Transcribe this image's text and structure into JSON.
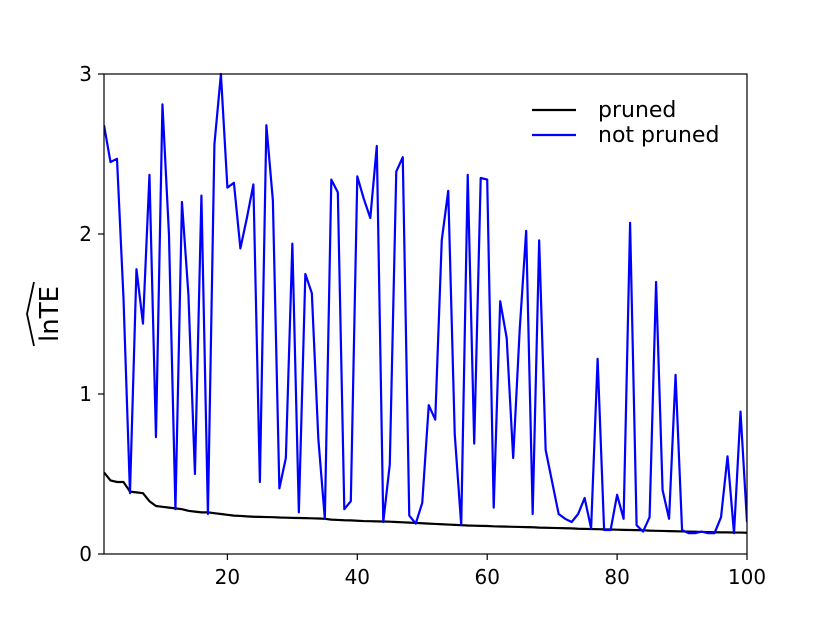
{
  "chart_data": {
    "type": "line",
    "title": "",
    "xlabel": "",
    "ylabel": "lnTE",
    "ylabel_hat": true,
    "xlim": [
      1,
      100
    ],
    "ylim": [
      0,
      3
    ],
    "x_ticks": [
      20,
      40,
      60,
      80,
      100
    ],
    "y_ticks": [
      0,
      1,
      2,
      3
    ],
    "grid": false,
    "legend_position": "top-right",
    "x": [
      1,
      2,
      3,
      4,
      5,
      6,
      7,
      8,
      9,
      10,
      11,
      12,
      13,
      14,
      15,
      16,
      17,
      18,
      19,
      20,
      21,
      22,
      23,
      24,
      25,
      26,
      27,
      28,
      29,
      30,
      31,
      32,
      33,
      34,
      35,
      36,
      37,
      38,
      39,
      40,
      41,
      42,
      43,
      44,
      45,
      46,
      47,
      48,
      49,
      50,
      51,
      52,
      53,
      54,
      55,
      56,
      57,
      58,
      59,
      60,
      61,
      62,
      63,
      64,
      65,
      66,
      67,
      68,
      69,
      70,
      71,
      72,
      73,
      74,
      75,
      76,
      77,
      78,
      79,
      80,
      81,
      82,
      83,
      84,
      85,
      86,
      87,
      88,
      89,
      90,
      91,
      92,
      93,
      94,
      95,
      96,
      97,
      98,
      99,
      100
    ],
    "series": [
      {
        "name": "pruned",
        "color": "#000000",
        "values": [
          0.51,
          0.46,
          0.45,
          0.45,
          0.39,
          0.385,
          0.38,
          0.33,
          0.3,
          0.295,
          0.29,
          0.285,
          0.28,
          0.27,
          0.265,
          0.26,
          0.26,
          0.255,
          0.25,
          0.245,
          0.24,
          0.238,
          0.235,
          0.233,
          0.232,
          0.231,
          0.23,
          0.228,
          0.227,
          0.226,
          0.225,
          0.224,
          0.223,
          0.222,
          0.22,
          0.215,
          0.213,
          0.211,
          0.21,
          0.208,
          0.206,
          0.205,
          0.204,
          0.203,
          0.202,
          0.2,
          0.198,
          0.196,
          0.194,
          0.192,
          0.19,
          0.188,
          0.186,
          0.184,
          0.182,
          0.18,
          0.178,
          0.177,
          0.176,
          0.175,
          0.173,
          0.172,
          0.171,
          0.17,
          0.169,
          0.168,
          0.167,
          0.165,
          0.164,
          0.163,
          0.162,
          0.161,
          0.16,
          0.158,
          0.157,
          0.156,
          0.155,
          0.154,
          0.153,
          0.152,
          0.151,
          0.15,
          0.149,
          0.148,
          0.146,
          0.145,
          0.144,
          0.143,
          0.142,
          0.141,
          0.14,
          0.139,
          0.138,
          0.137,
          0.136,
          0.135,
          0.135,
          0.134,
          0.134,
          0.133
        ]
      },
      {
        "name": "not pruned",
        "color": "#0000ff",
        "values": [
          2.68,
          2.45,
          2.47,
          1.6,
          0.38,
          1.78,
          1.44,
          2.37,
          0.73,
          2.81,
          2.0,
          0.28,
          2.2,
          1.62,
          0.5,
          2.24,
          0.25,
          2.56,
          3.0,
          2.29,
          2.32,
          1.91,
          2.1,
          2.31,
          0.45,
          2.68,
          2.21,
          0.41,
          0.6,
          1.94,
          0.26,
          1.75,
          1.63,
          0.72,
          0.22,
          2.34,
          2.26,
          0.28,
          0.33,
          2.36,
          2.22,
          2.1,
          2.55,
          0.2,
          0.56,
          2.39,
          2.48,
          0.24,
          0.19,
          0.32,
          0.93,
          0.84,
          1.96,
          2.27,
          0.75,
          0.18,
          2.37,
          0.69,
          2.35,
          2.34,
          0.29,
          1.58,
          1.35,
          0.6,
          1.4,
          2.02,
          0.25,
          1.96,
          0.65,
          0.45,
          0.25,
          0.22,
          0.2,
          0.25,
          0.35,
          0.16,
          1.22,
          0.15,
          0.15,
          0.37,
          0.22,
          2.07,
          0.18,
          0.14,
          0.23,
          1.7,
          0.4,
          0.22,
          1.12,
          0.15,
          0.13,
          0.13,
          0.14,
          0.13,
          0.13,
          0.23,
          0.61,
          0.13,
          0.89,
          0.2
        ]
      }
    ]
  }
}
